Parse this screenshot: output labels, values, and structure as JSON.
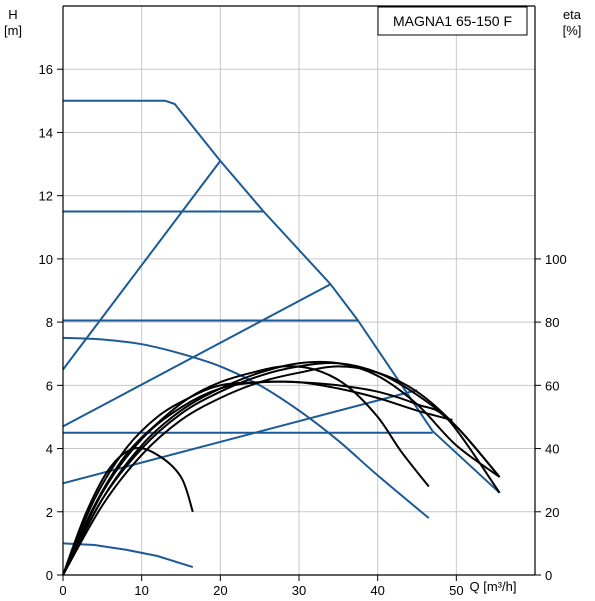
{
  "chart_data": {
    "type": "line",
    "model_label": "MAGNA1 65-150 F",
    "left_axis": {
      "label_line1": "H",
      "label_line2": "[m]",
      "min": 0,
      "max": 18,
      "ticks": [
        0,
        2,
        4,
        6,
        8,
        10,
        12,
        14,
        16
      ]
    },
    "right_axis": {
      "label_line1": "eta",
      "label_line2": "[%]",
      "min": 0,
      "max": 180,
      "ticks": [
        0,
        20,
        40,
        60,
        80,
        100
      ]
    },
    "x_axis": {
      "label": "Q [m³/h]",
      "min": 0,
      "max": 60,
      "ticks": [
        0,
        10,
        20,
        30,
        40,
        50
      ]
    },
    "grid": true,
    "colors": {
      "pump_curves": "#1c5a96",
      "efficiency_curves": "#000000",
      "grid": "#c8c8c8",
      "axis": "#000000"
    },
    "pump_curves": [
      {
        "points": [
          [
            0,
            15
          ],
          [
            13,
            15
          ],
          [
            14.2,
            14.9
          ],
          [
            20,
            13.1
          ],
          [
            25.5,
            11.5
          ],
          [
            34,
            9.2
          ],
          [
            37.5,
            8.05
          ],
          [
            47,
            4.55
          ],
          [
            55.5,
            2.6
          ]
        ]
      },
      {
        "points": [
          [
            0,
            11.5
          ],
          [
            25.5,
            11.5
          ]
        ]
      },
      {
        "points": [
          [
            0,
            8.05
          ],
          [
            37.5,
            8.05
          ]
        ]
      },
      {
        "points": [
          [
            0,
            4.5
          ],
          [
            47,
            4.5
          ]
        ]
      },
      {
        "points": [
          [
            0,
            6.5
          ],
          [
            20,
            13.1
          ]
        ]
      },
      {
        "points": [
          [
            0,
            4.7
          ],
          [
            34,
            9.2
          ]
        ]
      },
      {
        "points": [
          [
            0,
            2.9
          ],
          [
            45,
            5.85
          ]
        ]
      },
      {
        "points": [
          [
            0,
            7.5
          ],
          [
            5,
            7.45
          ],
          [
            10,
            7.3
          ],
          [
            15,
            7.0
          ],
          [
            20,
            6.6
          ],
          [
            25,
            6.0
          ],
          [
            30,
            5.2
          ],
          [
            35,
            4.25
          ],
          [
            40,
            3.15
          ],
          [
            46.5,
            1.8
          ]
        ]
      },
      {
        "points": [
          [
            0,
            1.0
          ],
          [
            4,
            0.95
          ],
          [
            8,
            0.8
          ],
          [
            12,
            0.6
          ],
          [
            16.5,
            0.25
          ]
        ]
      }
    ],
    "efficiency_curves": [
      {
        "points": [
          [
            0,
            0
          ],
          [
            3,
            20
          ],
          [
            6,
            34
          ],
          [
            9,
            40
          ],
          [
            12,
            38
          ],
          [
            15,
            31
          ],
          [
            16.5,
            20
          ]
        ]
      },
      {
        "points": [
          [
            0,
            0
          ],
          [
            4,
            22
          ],
          [
            8,
            38
          ],
          [
            12,
            48
          ],
          [
            16,
            56
          ],
          [
            20,
            61
          ],
          [
            24,
            64
          ],
          [
            28,
            66
          ],
          [
            32,
            65
          ],
          [
            36,
            60
          ],
          [
            40,
            50
          ],
          [
            43,
            39
          ],
          [
            46.5,
            28
          ]
        ]
      },
      {
        "points": [
          [
            0,
            0
          ],
          [
            5,
            24
          ],
          [
            10,
            41
          ],
          [
            15,
            52
          ],
          [
            20,
            59
          ],
          [
            25,
            64
          ],
          [
            30,
            67
          ],
          [
            35,
            67
          ],
          [
            40,
            63
          ],
          [
            45,
            54
          ],
          [
            50,
            41
          ],
          [
            55.5,
            31
          ]
        ]
      },
      {
        "points": [
          [
            0,
            0
          ],
          [
            5,
            22
          ],
          [
            10,
            38
          ],
          [
            15,
            49
          ],
          [
            20,
            56
          ],
          [
            25,
            61
          ],
          [
            30,
            64
          ],
          [
            35,
            66
          ],
          [
            40,
            64
          ],
          [
            45,
            58
          ],
          [
            50,
            47
          ],
          [
            55.5,
            31
          ]
        ]
      },
      {
        "points": [
          [
            0,
            0
          ],
          [
            5,
            26
          ],
          [
            10,
            43
          ],
          [
            15,
            53
          ],
          [
            20,
            59
          ],
          [
            25,
            61
          ],
          [
            30,
            61
          ],
          [
            35,
            60
          ],
          [
            40,
            58
          ],
          [
            45,
            54
          ],
          [
            49,
            49
          ],
          [
            55.5,
            26
          ]
        ]
      },
      {
        "points": [
          [
            0,
            0
          ],
          [
            4,
            24
          ],
          [
            8,
            40
          ],
          [
            12,
            50
          ],
          [
            16,
            56
          ],
          [
            20,
            60
          ],
          [
            25,
            61
          ],
          [
            30,
            61
          ],
          [
            35,
            59
          ],
          [
            40,
            56
          ],
          [
            45,
            52
          ],
          [
            49.5,
            49
          ]
        ]
      },
      {
        "points": [
          [
            0,
            0
          ],
          [
            5,
            24
          ],
          [
            10,
            40
          ],
          [
            15,
            51
          ],
          [
            20,
            58
          ],
          [
            25,
            63
          ],
          [
            30,
            66
          ],
          [
            35,
            67
          ],
          [
            40,
            64
          ],
          [
            45,
            57
          ],
          [
            50,
            47
          ],
          [
            55.5,
            31
          ]
        ]
      }
    ]
  }
}
